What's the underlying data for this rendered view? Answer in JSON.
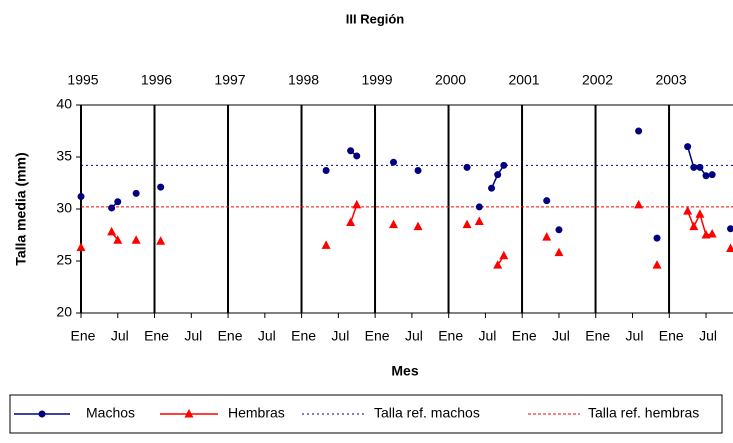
{
  "chart_data": {
    "type": "line",
    "title": "III Región",
    "xlabel": "Mes",
    "ylabel": "Talla media (mm)",
    "xlim": [
      0,
      106.4
    ],
    "xticks": [
      {
        "value": 0,
        "label": "Ene"
      },
      {
        "value": 6,
        "label": "Jul"
      },
      {
        "value": 12,
        "label": "Ene"
      },
      {
        "value": 18,
        "label": "Jul"
      },
      {
        "value": 24,
        "label": "Ene"
      },
      {
        "value": 30,
        "label": "Jul"
      },
      {
        "value": 36,
        "label": "Ene"
      },
      {
        "value": 42,
        "label": "Jul"
      },
      {
        "value": 48,
        "label": "Ene"
      },
      {
        "value": 54,
        "label": "Jul"
      },
      {
        "value": 60,
        "label": "Ene"
      },
      {
        "value": 66,
        "label": "Jul"
      },
      {
        "value": 72,
        "label": "Ene"
      },
      {
        "value": 78,
        "label": "Jul"
      },
      {
        "value": 84,
        "label": "Ene"
      },
      {
        "value": 90,
        "label": "Jul"
      },
      {
        "value": 96,
        "label": "Ene"
      },
      {
        "value": 102,
        "label": "Jul"
      }
    ],
    "x2lim": [
      1995,
      2003.87
    ],
    "x2ticks": [
      1995,
      1996,
      1997,
      1998,
      1999,
      2000,
      2001,
      2002,
      2003
    ],
    "ylim": [
      20,
      40
    ],
    "yticks": [
      20,
      25,
      30,
      35,
      40
    ],
    "series": [
      {
        "name": "Machos",
        "color": "#000080",
        "marker": "circle",
        "x": [
          0,
          null,
          5,
          6,
          null,
          9,
          null,
          13,
          null,
          40,
          null,
          44,
          45,
          null,
          51,
          null,
          55,
          null,
          63,
          null,
          65,
          null,
          67,
          68,
          69,
          null,
          76,
          null,
          78,
          null,
          91,
          null,
          94,
          null,
          99,
          100,
          101,
          102,
          103,
          null,
          106
        ],
        "values": [
          31.2,
          null,
          30.1,
          30.7,
          null,
          31.5,
          null,
          32.1,
          null,
          33.7,
          null,
          35.6,
          35.1,
          null,
          34.5,
          null,
          33.7,
          null,
          34.0,
          null,
          30.2,
          null,
          32.0,
          33.3,
          34.2,
          null,
          30.8,
          null,
          28.0,
          null,
          37.5,
          null,
          27.2,
          null,
          36.0,
          34.0,
          34.0,
          33.2,
          33.3,
          null,
          28.1
        ]
      },
      {
        "name": "Hembras",
        "color": "#ff0000",
        "marker": "triangle",
        "x": [
          0,
          null,
          5,
          6,
          null,
          9,
          null,
          13,
          null,
          40,
          null,
          44,
          45,
          null,
          51,
          null,
          55,
          null,
          63,
          null,
          65,
          null,
          68,
          69,
          null,
          76,
          null,
          78,
          null,
          91,
          null,
          94,
          null,
          99,
          100,
          101,
          102,
          103,
          null,
          106
        ],
        "values": [
          26.3,
          null,
          27.8,
          27.0,
          null,
          27.0,
          null,
          26.9,
          null,
          26.5,
          null,
          28.7,
          30.4,
          null,
          28.5,
          null,
          28.3,
          null,
          28.5,
          null,
          28.8,
          null,
          24.6,
          25.5,
          null,
          27.3,
          null,
          25.8,
          null,
          30.4,
          null,
          24.6,
          null,
          29.8,
          28.3,
          29.5,
          27.5,
          27.6,
          null,
          26.2
        ]
      }
    ],
    "reference_lines": [
      {
        "name": "Talla ref. machos",
        "value": 34.2,
        "color": "#000080",
        "dash": "2 3"
      },
      {
        "name": "Talla ref. hembras",
        "value": 30.2,
        "color": "#ff0000",
        "dash": "3 2"
      }
    ]
  }
}
